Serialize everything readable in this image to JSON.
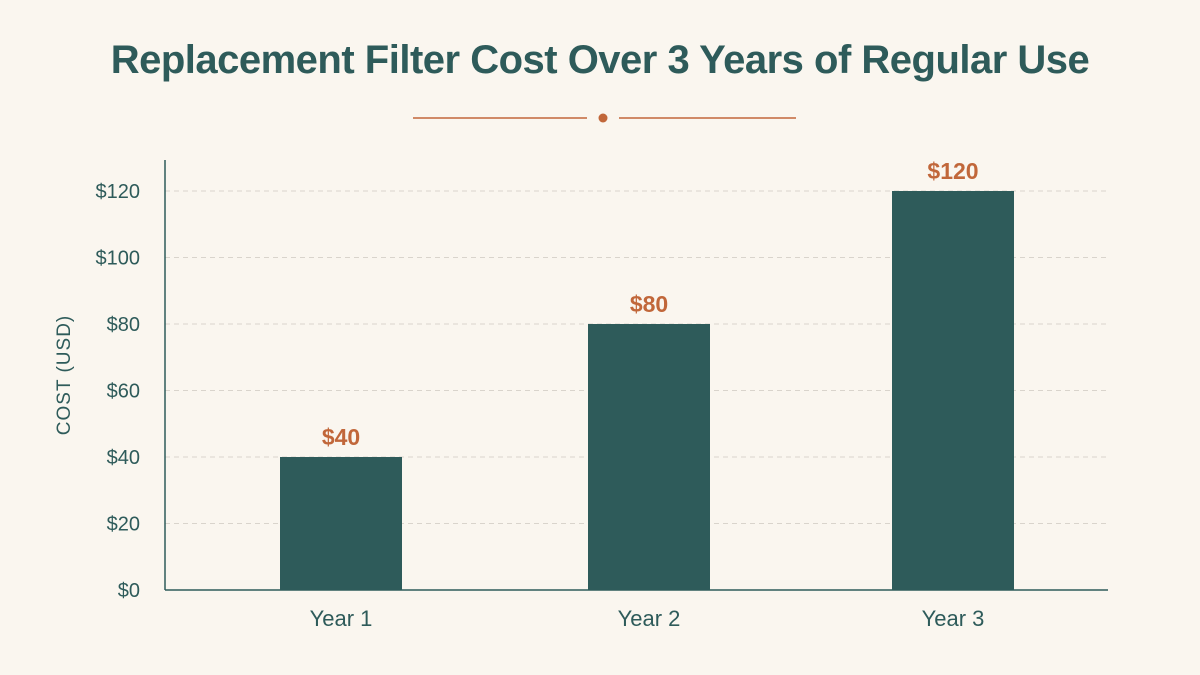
{
  "chart_data": {
    "type": "bar",
    "title": "Replacement Filter Cost Over 3 Years of Regular Use",
    "xlabel": "",
    "ylabel": "COST (USD)",
    "categories": [
      "Year 1",
      "Year 2",
      "Year 3"
    ],
    "values": [
      40,
      80,
      120
    ],
    "value_labels": [
      "$40",
      "$80",
      "$120"
    ],
    "ylim": [
      0,
      130
    ],
    "yticks": [
      0,
      20,
      40,
      60,
      80,
      100,
      120
    ],
    "ytick_labels": [
      "$0",
      "$20",
      "$40",
      "$60",
      "$80",
      "$100",
      "$120"
    ],
    "grid": true,
    "legend": "none"
  },
  "colors": {
    "bar": "#2e5b5a",
    "accent": "#c1673a",
    "text": "#2e5b5a",
    "grid": "#d9d4cc",
    "background": "#faf6ef"
  }
}
